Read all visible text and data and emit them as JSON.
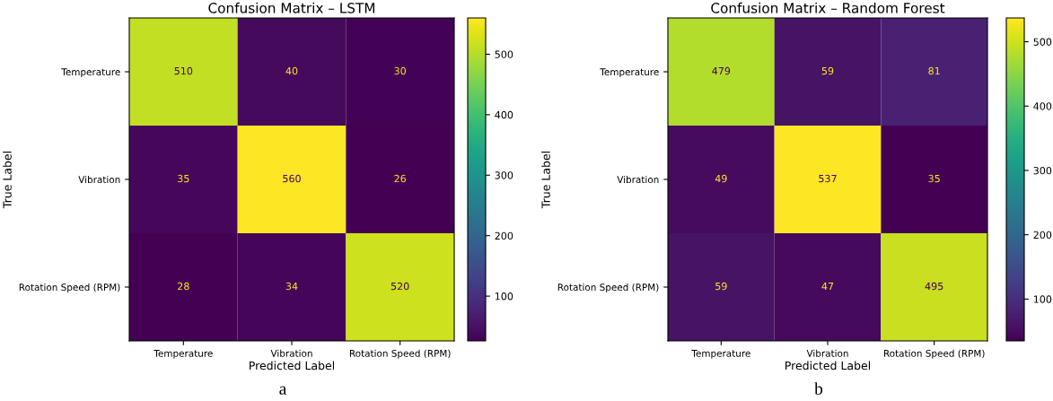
{
  "chart_data": [
    {
      "type": "heatmap",
      "title": "Confusion Matrix – LSTM",
      "xlabel": "Predicted Label",
      "ylabel": "True Label",
      "categories": [
        "Temperature",
        "Vibration",
        "Rotation Speed (RPM)"
      ],
      "y_categories": [
        "Temperature",
        "Vibration",
        "Rotation Speed (RPM)"
      ],
      "cells": [
        [
          510,
          40,
          30
        ],
        [
          35,
          560,
          26
        ],
        [
          28,
          34,
          520
        ]
      ],
      "clim": [
        26,
        560
      ],
      "data_labels": true,
      "cticks": [
        100,
        200,
        300,
        400,
        500
      ],
      "annotations": [
        "a"
      ]
    },
    {
      "type": "heatmap",
      "title": "Confusion Matrix – Random Forest",
      "xlabel": "Predicted Label",
      "ylabel": "True Label",
      "categories": [
        "Temperature",
        "Vibration",
        "Rotation Speed (RPM)"
      ],
      "y_categories": [
        "Temperature",
        "Vibration",
        "Rotation Speed (RPM)"
      ],
      "cells": [
        [
          479,
          59,
          81
        ],
        [
          49,
          537,
          35
        ],
        [
          59,
          47,
          495
        ]
      ],
      "clim": [
        35,
        537
      ],
      "data_labels": true,
      "cticks": [
        100,
        200,
        300,
        400,
        500
      ],
      "annotations": [
        "b"
      ]
    }
  ]
}
